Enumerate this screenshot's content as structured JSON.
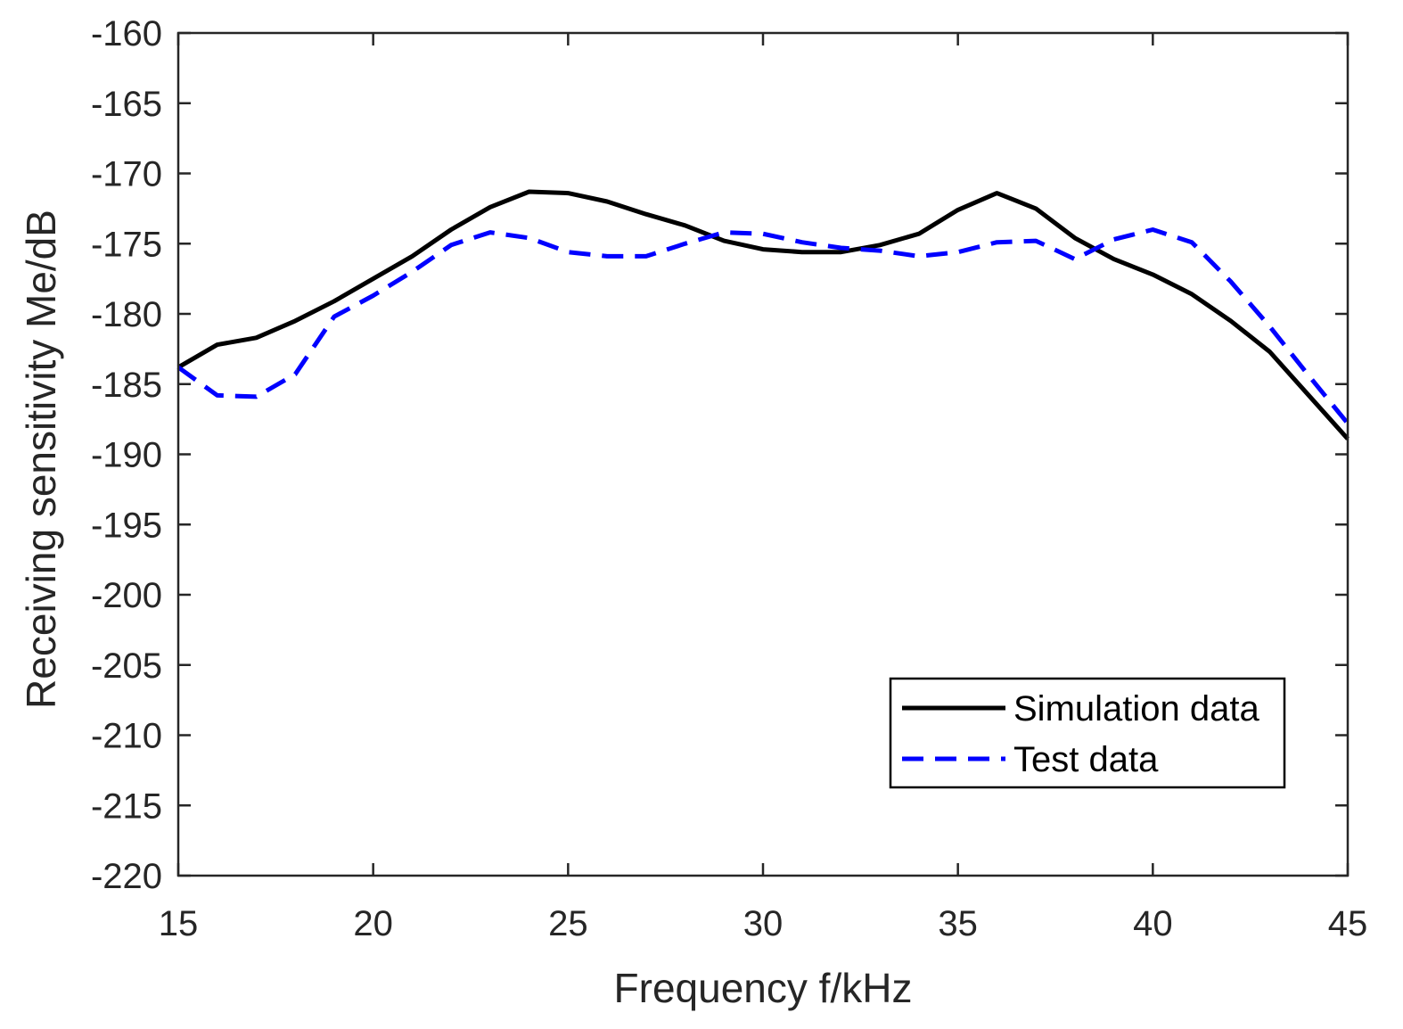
{
  "chart_data": {
    "type": "line",
    "title": "",
    "xlabel": "Frequency f/kHz",
    "ylabel": "Receiving sensitivity Me/dB",
    "xlim": [
      15,
      45
    ],
    "ylim": [
      -220,
      -160
    ],
    "xticks": [
      15,
      20,
      25,
      30,
      35,
      40,
      45
    ],
    "yticks": [
      -160,
      -165,
      -170,
      -175,
      -180,
      -185,
      -190,
      -195,
      -200,
      -205,
      -210,
      -215,
      -220
    ],
    "xtick_labels": [
      "15",
      "20",
      "25",
      "30",
      "35",
      "40",
      "45"
    ],
    "ytick_labels": [
      "-160",
      "-165",
      "-170",
      "-175",
      "-180",
      "-185",
      "-190",
      "-195",
      "-200",
      "-205",
      "-210",
      "-215",
      "-220"
    ],
    "grid": false,
    "legend_position": "bottom-right",
    "series": [
      {
        "name": "Simulation data",
        "color": "#000000",
        "style": "solid",
        "x": [
          15,
          16,
          17,
          18,
          19,
          20,
          21,
          22,
          23,
          24,
          25,
          26,
          27,
          28,
          29,
          30,
          31,
          32,
          33,
          34,
          35,
          36,
          37,
          38,
          39,
          40,
          41,
          42,
          43,
          44,
          45
        ],
        "values": [
          -183.8,
          -182.2,
          -181.7,
          -180.5,
          -179.1,
          -177.5,
          -175.9,
          -174.0,
          -172.4,
          -171.3,
          -171.4,
          -172.0,
          -172.9,
          -173.7,
          -174.8,
          -175.4,
          -175.6,
          -175.6,
          -175.1,
          -174.3,
          -172.6,
          -171.4,
          -172.5,
          -174.6,
          -176.1,
          -177.2,
          -178.6,
          -180.5,
          -182.7,
          -185.8,
          -188.9
        ]
      },
      {
        "name": "Test data",
        "color": "#0000FF",
        "style": "dashed",
        "x": [
          15,
          16,
          17,
          18,
          19,
          20,
          21,
          22,
          23,
          24,
          25,
          26,
          27,
          28,
          29,
          30,
          31,
          32,
          33,
          34,
          35,
          36,
          37,
          38,
          39,
          40,
          41,
          42,
          43,
          44,
          45
        ],
        "values": [
          -183.8,
          -185.8,
          -185.9,
          -184.3,
          -180.2,
          -178.7,
          -177.0,
          -175.1,
          -174.2,
          -174.6,
          -175.6,
          -175.9,
          -175.9,
          -175.0,
          -174.2,
          -174.3,
          -174.9,
          -175.3,
          -175.5,
          -175.9,
          -175.6,
          -174.9,
          -174.8,
          -176.1,
          -174.7,
          -174.0,
          -174.9,
          -177.7,
          -180.9,
          -184.4,
          -187.8
        ]
      }
    ]
  }
}
